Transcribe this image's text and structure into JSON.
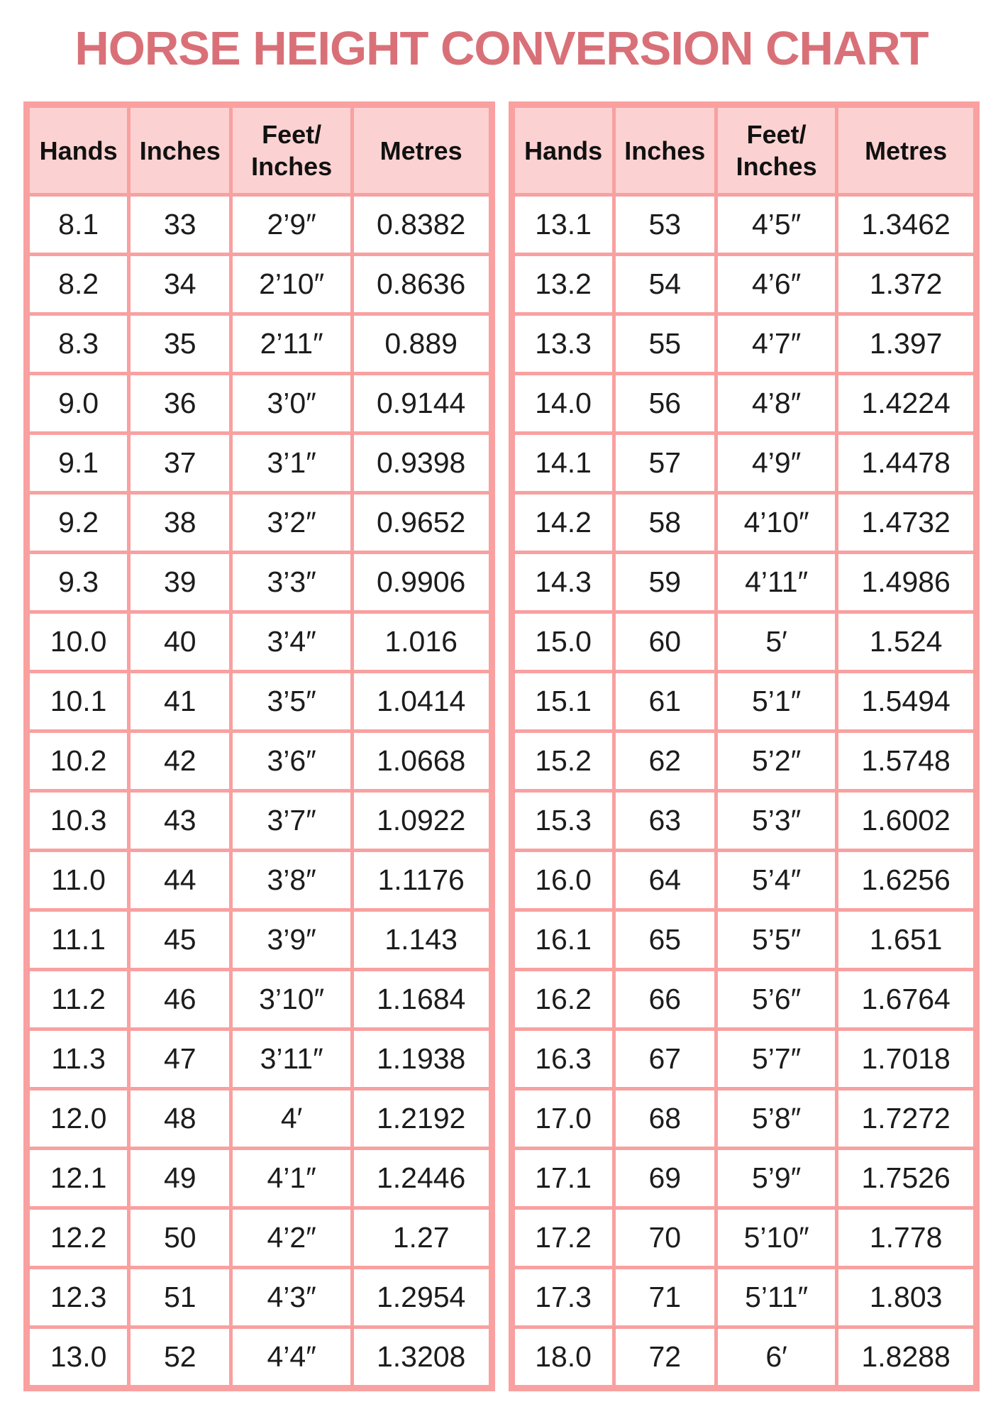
{
  "title": "HORSE HEIGHT CONVERSION CHART",
  "colors": {
    "title_text": "#d97078",
    "table_border": "#f9a0a0",
    "header_fill": "#fcd1d1",
    "body_text": "#1c1c1c",
    "background": "#ffffff"
  },
  "columns": [
    "Hands",
    "Inches",
    "Feet/\nInches",
    "Metres"
  ],
  "tables": [
    {
      "rows": [
        [
          "8.1",
          "33",
          "2’9″",
          "0.8382"
        ],
        [
          "8.2",
          "34",
          "2’10″",
          "0.8636"
        ],
        [
          "8.3",
          "35",
          "2’11″",
          "0.889"
        ],
        [
          "9.0",
          "36",
          "3’0″",
          "0.9144"
        ],
        [
          "9.1",
          "37",
          "3’1″",
          "0.9398"
        ],
        [
          "9.2",
          "38",
          "3’2″",
          "0.9652"
        ],
        [
          "9.3",
          "39",
          "3’3″",
          "0.9906"
        ],
        [
          "10.0",
          "40",
          "3’4″",
          "1.016"
        ],
        [
          "10.1",
          "41",
          "3’5″",
          "1.0414"
        ],
        [
          "10.2",
          "42",
          "3’6″",
          "1.0668"
        ],
        [
          "10.3",
          "43",
          "3’7″",
          "1.0922"
        ],
        [
          "11.0",
          "44",
          "3’8″",
          "1.1176"
        ],
        [
          "11.1",
          "45",
          "3’9″",
          "1.143"
        ],
        [
          "11.2",
          "46",
          "3’10″",
          "1.1684"
        ],
        [
          "11.3",
          "47",
          "3’11″",
          "1.1938"
        ],
        [
          "12.0",
          "48",
          "4′",
          "1.2192"
        ],
        [
          "12.1",
          "49",
          "4’1″",
          "1.2446"
        ],
        [
          "12.2",
          "50",
          "4’2″",
          "1.27"
        ],
        [
          "12.3",
          "51",
          "4’3″",
          "1.2954"
        ],
        [
          "13.0",
          "52",
          "4’4″",
          "1.3208"
        ]
      ]
    },
    {
      "rows": [
        [
          "13.1",
          "53",
          "4’5″",
          "1.3462"
        ],
        [
          "13.2",
          "54",
          "4’6″",
          "1.372"
        ],
        [
          "13.3",
          "55",
          "4’7″",
          "1.397"
        ],
        [
          "14.0",
          "56",
          "4’8″",
          "1.4224"
        ],
        [
          "14.1",
          "57",
          "4’9″",
          "1.4478"
        ],
        [
          "14.2",
          "58",
          "4’10″",
          "1.4732"
        ],
        [
          "14.3",
          "59",
          "4’11″",
          "1.4986"
        ],
        [
          "15.0",
          "60",
          "5′",
          "1.524"
        ],
        [
          "15.1",
          "61",
          "5’1″",
          "1.5494"
        ],
        [
          "15.2",
          "62",
          "5’2″",
          "1.5748"
        ],
        [
          "15.3",
          "63",
          "5’3″",
          "1.6002"
        ],
        [
          "16.0",
          "64",
          "5’4″",
          "1.6256"
        ],
        [
          "16.1",
          "65",
          "5’5″",
          "1.651"
        ],
        [
          "16.2",
          "66",
          "5’6″",
          "1.6764"
        ],
        [
          "16.3",
          "67",
          "5’7″",
          "1.7018"
        ],
        [
          "17.0",
          "68",
          "5’8″",
          "1.7272"
        ],
        [
          "17.1",
          "69",
          "5’9″",
          "1.7526"
        ],
        [
          "17.2",
          "70",
          "5’10″",
          "1.778"
        ],
        [
          "17.3",
          "71",
          "5’11″",
          "1.803"
        ],
        [
          "18.0",
          "72",
          "6′",
          "1.8288"
        ]
      ]
    }
  ]
}
